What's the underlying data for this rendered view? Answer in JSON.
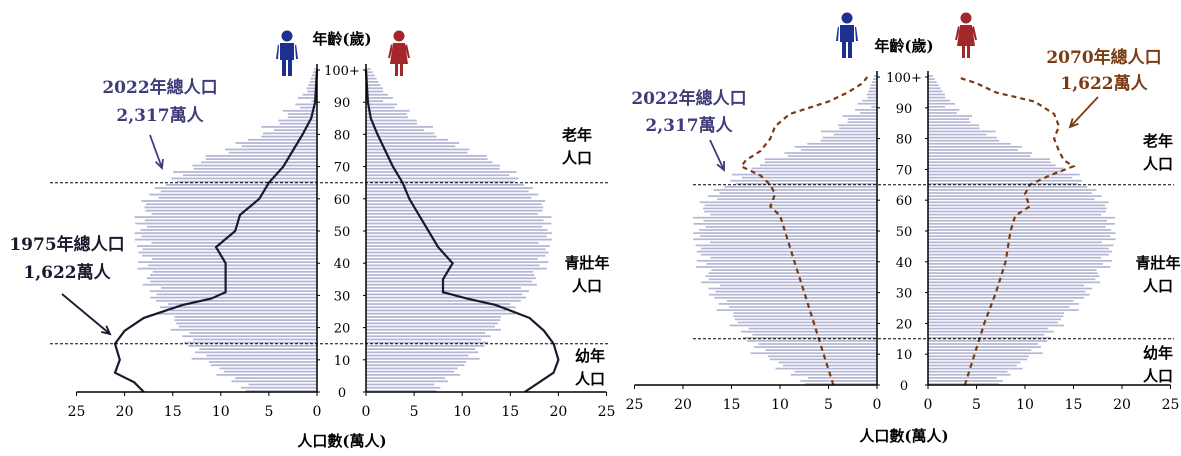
{
  "chart_data": [
    {
      "type": "population-pyramid",
      "y_axis_title": "年齡(歲)",
      "x_axis_title": "人口數(萬人)",
      "x_ticks_male": [
        "25",
        "20",
        "15",
        "10",
        "5",
        "0"
      ],
      "x_ticks_female": [
        "0",
        "5",
        "10",
        "15",
        "20",
        "25"
      ],
      "xlim": [
        0,
        25
      ],
      "y_ticks": [
        "0",
        "10",
        "20",
        "30",
        "40",
        "50",
        "60",
        "70",
        "80",
        "90",
        "100+"
      ],
      "ylim": [
        0,
        100
      ],
      "threshold_ages": [
        15,
        65
      ],
      "bars_2022": {
        "ages": [
          0,
          10,
          20,
          30,
          40,
          50,
          60,
          70,
          80,
          90,
          100
        ],
        "male": [
          7,
          12,
          14.5,
          17,
          18,
          18.5,
          17.5,
          13,
          5.5,
          1.5,
          0.3
        ],
        "female": [
          7,
          11,
          13.5,
          16.5,
          18.5,
          19,
          18,
          14,
          7,
          2.5,
          0.5
        ]
      },
      "line_1975": {
        "ages": [
          0,
          3,
          6,
          10,
          15,
          19,
          23,
          27,
          29,
          31,
          35,
          40,
          45,
          50,
          55,
          60,
          65,
          70,
          75,
          80,
          85,
          90,
          100
        ],
        "male": [
          18,
          19,
          21,
          20.5,
          21,
          20,
          18,
          14,
          11,
          9.5,
          9.5,
          9.5,
          10.5,
          8.5,
          8,
          6,
          5,
          3.5,
          2.5,
          1.5,
          0.6,
          0.2,
          0
        ],
        "female": [
          16.5,
          18,
          19.5,
          20,
          19.5,
          18.5,
          17,
          13.5,
          10.5,
          8,
          8,
          9,
          7.5,
          6.5,
          5.5,
          4.5,
          3.8,
          2.8,
          2,
          1.2,
          0.5,
          0.2,
          0
        ]
      },
      "line_2070": {
        "ages": [
          0,
          10,
          20,
          30,
          40,
          50,
          55,
          58,
          62,
          65,
          68,
          71,
          73,
          76,
          80,
          84,
          88,
          92,
          95,
          98,
          100
        ],
        "male": [
          4.5,
          5.5,
          6.5,
          7.5,
          8.5,
          9.5,
          10,
          11,
          10.5,
          11,
          12,
          14,
          13.5,
          12,
          11,
          10.5,
          9,
          5,
          3,
          1.5,
          1
        ],
        "female": [
          3.8,
          4.8,
          5.8,
          7,
          8,
          8.5,
          9,
          10.5,
          10,
          10.5,
          12.5,
          15,
          14,
          13.5,
          13,
          13.5,
          13,
          11,
          7,
          5,
          3
        ]
      },
      "annotations": {
        "pop_2022": [
          "2022年總人口",
          "2,317萬人"
        ],
        "pop_1975": [
          "1975年總人口",
          "1,622萬人"
        ],
        "elderly": [
          "老年",
          "人口"
        ],
        "working": [
          "青壯年",
          "人口"
        ],
        "young": [
          "幼年",
          "人口"
        ]
      }
    },
    {
      "type": "population-pyramid",
      "y_axis_title": "年齡(歲)",
      "x_axis_title": "人口數(萬人)",
      "x_ticks_male": [
        "25",
        "20",
        "15",
        "10",
        "5",
        "0"
      ],
      "x_ticks_female": [
        "0",
        "5",
        "10",
        "15",
        "20",
        "25"
      ],
      "xlim": [
        0,
        25
      ],
      "y_ticks": [
        "0",
        "10",
        "20",
        "30",
        "40",
        "50",
        "60",
        "70",
        "80",
        "90",
        "100+"
      ],
      "ylim": [
        0,
        100
      ],
      "threshold_ages": [
        15,
        65
      ],
      "annotations": {
        "pop_2022": [
          "2022年總人口",
          "2,317萬人"
        ],
        "pop_2070": [
          "2070年總人口",
          "1,622萬人"
        ],
        "elderly": [
          "老年",
          "人口"
        ],
        "working": [
          "青壯年",
          "人口"
        ],
        "young": [
          "幼年",
          "人口"
        ]
      }
    }
  ],
  "colors": {
    "bars": "#b3b6d4",
    "axis": "#000000",
    "line_1975": "#1a1a2e",
    "line_2070": "#7a3b10",
    "label_2022": "#3f3d79",
    "label_2070": "#7a3b10",
    "label_1975": "#1a1a2e",
    "male_icon": "#1d2f8f",
    "female_icon": "#a3272a"
  },
  "icons": {
    "male": "male-person-icon",
    "female": "female-person-icon"
  }
}
